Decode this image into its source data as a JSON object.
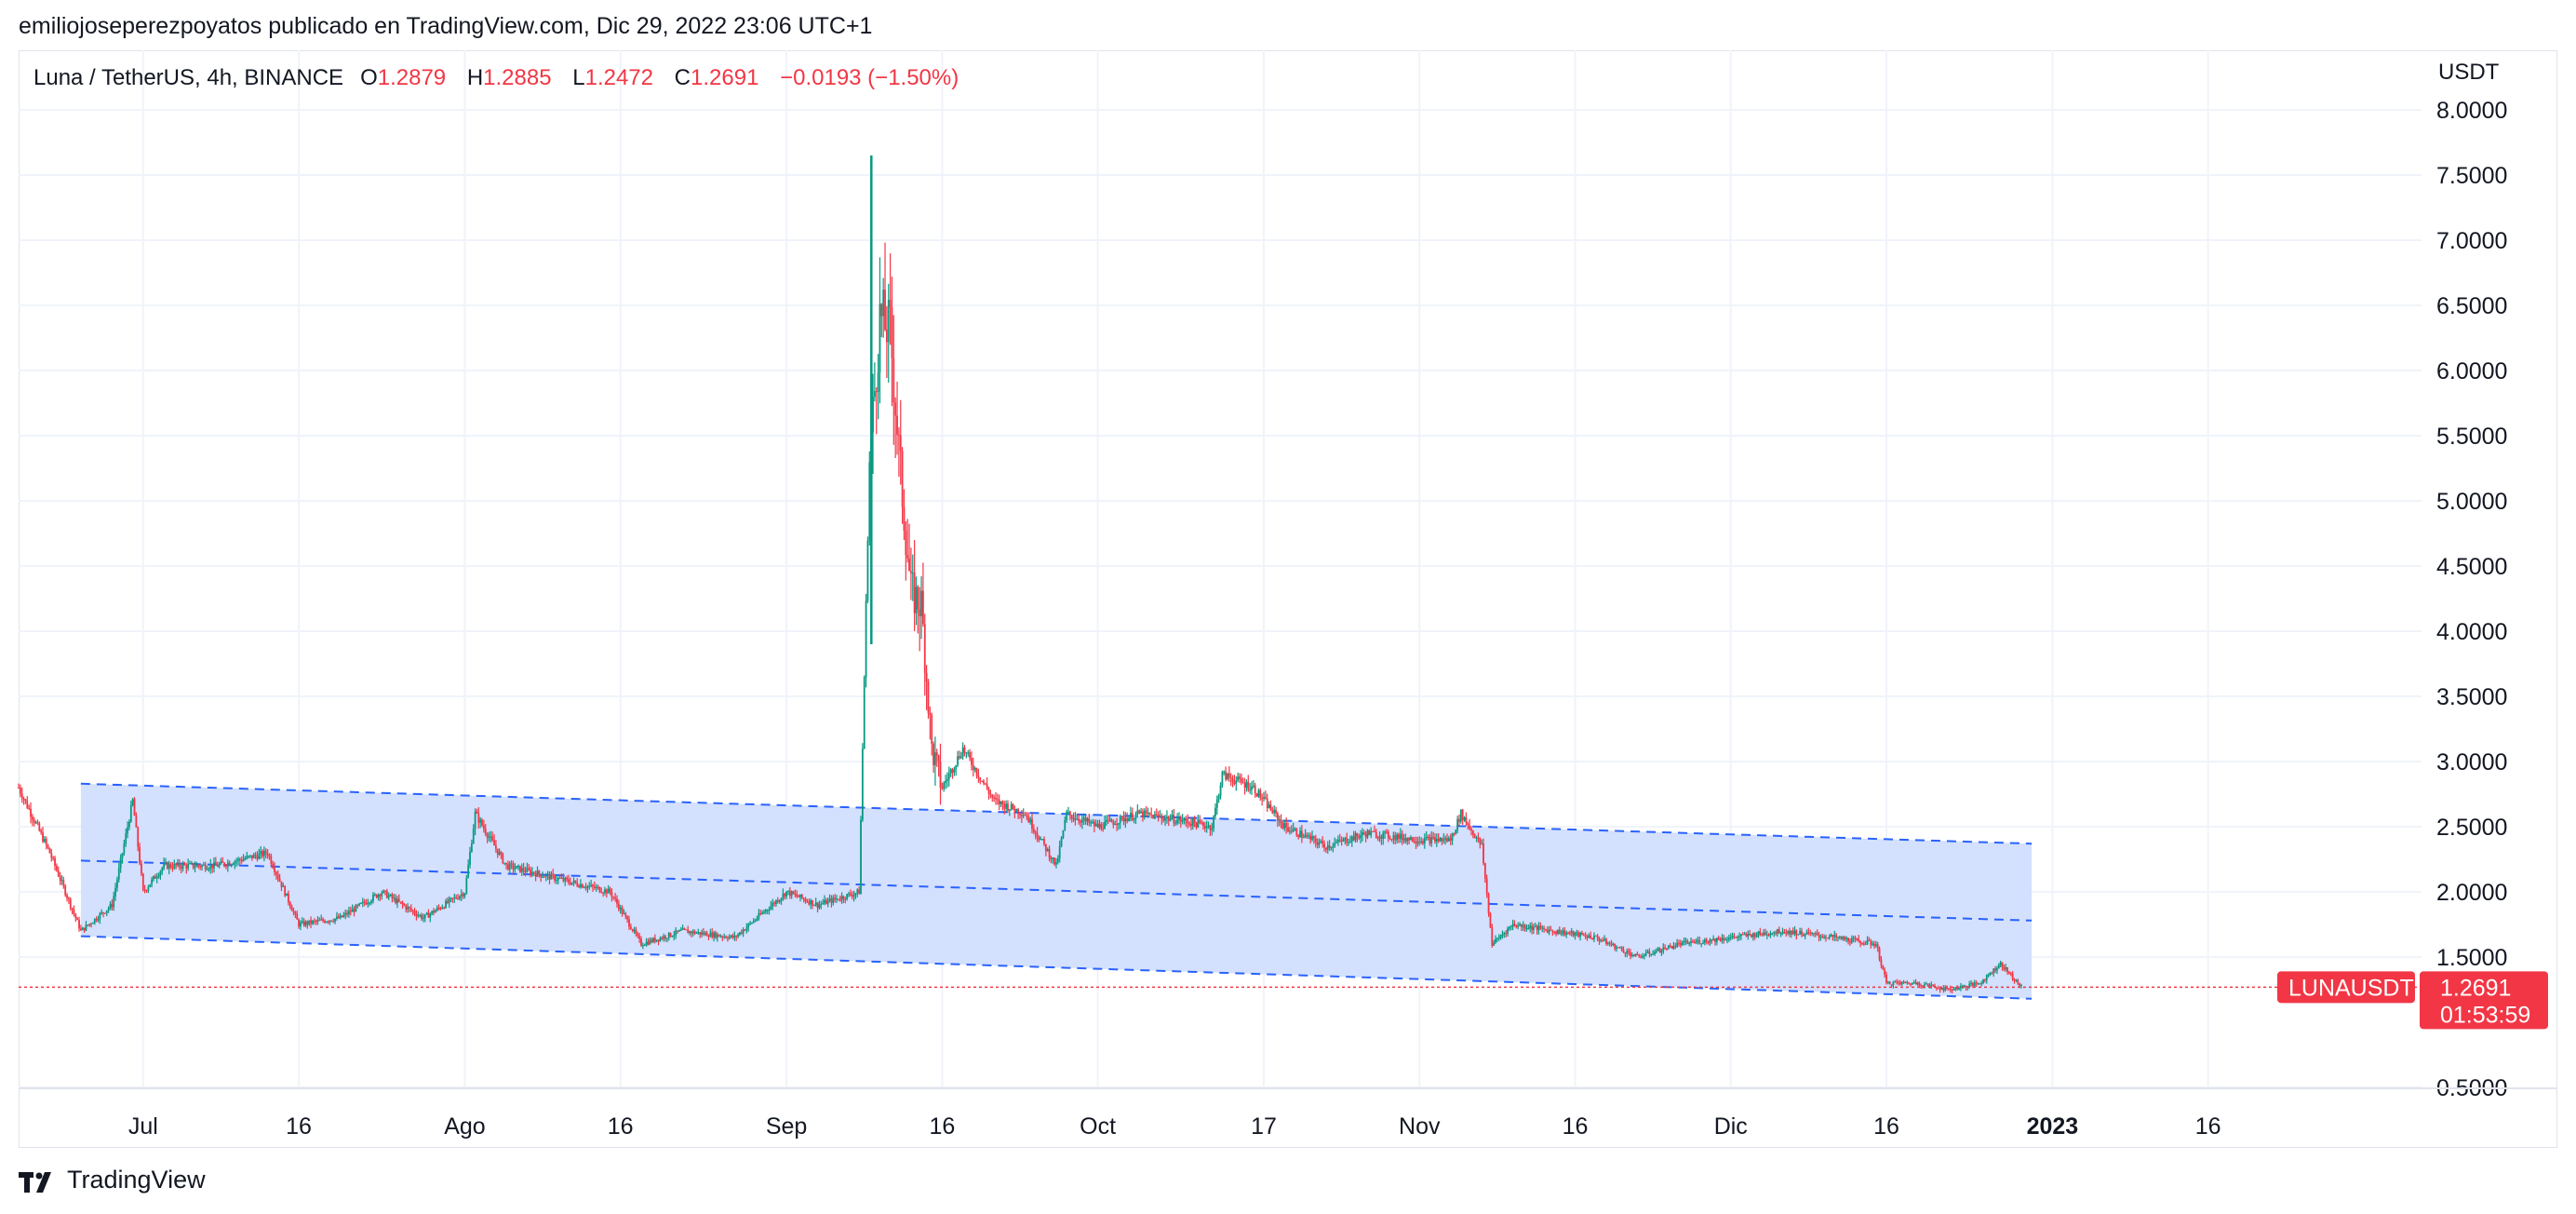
{
  "header": {
    "publish_line": "emiliojoseperezpoyatos publicado en TradingView.com, Dic 29, 2022 23:06 UTC+1"
  },
  "legend": {
    "symbol": "Luna / TetherUS, 4h, BINANCE",
    "open_label": "O",
    "open": "1.2879",
    "high_label": "H",
    "high": "1.2885",
    "low_label": "L",
    "low": "1.2472",
    "close_label": "C",
    "close": "1.2691",
    "change": "−0.0193 (−1.50%)"
  },
  "price_axis": {
    "unit": "USDT"
  },
  "price_tag": {
    "ticker": "LUNAUSDT",
    "price": "1.2691",
    "countdown": "01:53:59"
  },
  "footer": {
    "brand": "TradingView"
  },
  "colors": {
    "up": "#089981",
    "down": "#f23645",
    "channel_fill": "#d1defe",
    "channel_line": "#2962ff",
    "grid": "#f0f3fa"
  },
  "chart_data": {
    "type": "candlestick",
    "symbol": "LUNAUSDT",
    "interval": "4h",
    "ylim": [
      0.5,
      8.0
    ],
    "y_ticks": [
      "0.5000",
      "1.5000",
      "2.0000",
      "2.5000",
      "3.0000",
      "3.5000",
      "4.0000",
      "4.5000",
      "5.0000",
      "5.5000",
      "6.0000",
      "6.5000",
      "7.0000",
      "7.5000",
      "8.0000"
    ],
    "x_ticks": [
      "Jul",
      "16",
      "Ago",
      "16",
      "Sep",
      "16",
      "Oct",
      "17",
      "Nov",
      "16",
      "Dic",
      "16",
      "2023",
      "16"
    ],
    "x_range": [
      "2022-06-19",
      "2023-01-20"
    ],
    "x_tick_dates": [
      "2022-07-01",
      "2022-07-16",
      "2022-08-01",
      "2022-08-16",
      "2022-09-01",
      "2022-09-16",
      "2022-10-01",
      "2022-10-17",
      "2022-11-01",
      "2022-11-16",
      "2022-12-01",
      "2022-12-16",
      "2023-01-01",
      "2023-01-16"
    ],
    "last_price": 1.2691,
    "price_path": [
      [
        "2022-06-19",
        2.8
      ],
      [
        "2022-06-22",
        2.3
      ],
      [
        "2022-06-25",
        1.7
      ],
      [
        "2022-06-28",
        1.9
      ],
      [
        "2022-07-01",
        2.0
      ],
      [
        "2022-06-30",
        2.7
      ],
      [
        "2022-07-03",
        2.2
      ],
      [
        "2022-07-08",
        2.2
      ],
      [
        "2022-07-13",
        2.3
      ],
      [
        "2022-07-16",
        1.75
      ],
      [
        "2022-07-20",
        1.8
      ],
      [
        "2022-07-24",
        2.0
      ],
      [
        "2022-07-28",
        1.8
      ],
      [
        "2022-08-01",
        2.0
      ],
      [
        "2022-08-02",
        2.6
      ],
      [
        "2022-08-05",
        2.2
      ],
      [
        "2022-08-10",
        2.1
      ],
      [
        "2022-08-15",
        2.0
      ],
      [
        "2022-08-18",
        1.6
      ],
      [
        "2022-08-22",
        1.7
      ],
      [
        "2022-08-27",
        1.65
      ],
      [
        "2022-09-01",
        2.0
      ],
      [
        "2022-09-04",
        1.9
      ],
      [
        "2022-09-08",
        2.0
      ],
      [
        "2022-09-09",
        5.3
      ],
      [
        "2022-09-10",
        6.4
      ],
      [
        "2022-09-11",
        6.3
      ],
      [
        "2022-09-12",
        5.2
      ],
      [
        "2022-09-13",
        4.3
      ],
      [
        "2022-09-14",
        4.2
      ],
      [
        "2022-09-15",
        3.1
      ],
      [
        "2022-09-16",
        2.8
      ],
      [
        "2022-09-18",
        3.1
      ],
      [
        "2022-09-21",
        2.7
      ],
      [
        "2022-09-24",
        2.6
      ],
      [
        "2022-09-27",
        2.2
      ],
      [
        "2022-09-28",
        2.6
      ],
      [
        "2022-10-01",
        2.5
      ],
      [
        "2022-10-05",
        2.6
      ],
      [
        "2022-10-09",
        2.55
      ],
      [
        "2022-10-12",
        2.5
      ],
      [
        "2022-10-13",
        2.9
      ],
      [
        "2022-10-16",
        2.8
      ],
      [
        "2022-10-19",
        2.5
      ],
      [
        "2022-10-23",
        2.35
      ],
      [
        "2022-10-27",
        2.45
      ],
      [
        "2022-11-01",
        2.4
      ],
      [
        "2022-11-04",
        2.4
      ],
      [
        "2022-11-05",
        2.6
      ],
      [
        "2022-11-07",
        2.35
      ],
      [
        "2022-11-08",
        1.6
      ],
      [
        "2022-11-10",
        1.75
      ],
      [
        "2022-11-14",
        1.7
      ],
      [
        "2022-11-18",
        1.65
      ],
      [
        "2022-11-22",
        1.5
      ],
      [
        "2022-11-26",
        1.6
      ],
      [
        "2022-12-01",
        1.65
      ],
      [
        "2022-12-06",
        1.7
      ],
      [
        "2022-12-11",
        1.65
      ],
      [
        "2022-12-15",
        1.6
      ],
      [
        "2022-12-16",
        1.3
      ],
      [
        "2022-12-19",
        1.3
      ],
      [
        "2022-12-22",
        1.25
      ],
      [
        "2022-12-25",
        1.3
      ],
      [
        "2022-12-27",
        1.45
      ],
      [
        "2022-12-29",
        1.27
      ]
    ],
    "channel": {
      "start": "2022-06-25",
      "end": "2022-12-30",
      "upper": [
        2.83,
        2.37
      ],
      "middle": [
        2.24,
        1.78
      ],
      "lower": [
        1.66,
        1.18
      ]
    }
  }
}
